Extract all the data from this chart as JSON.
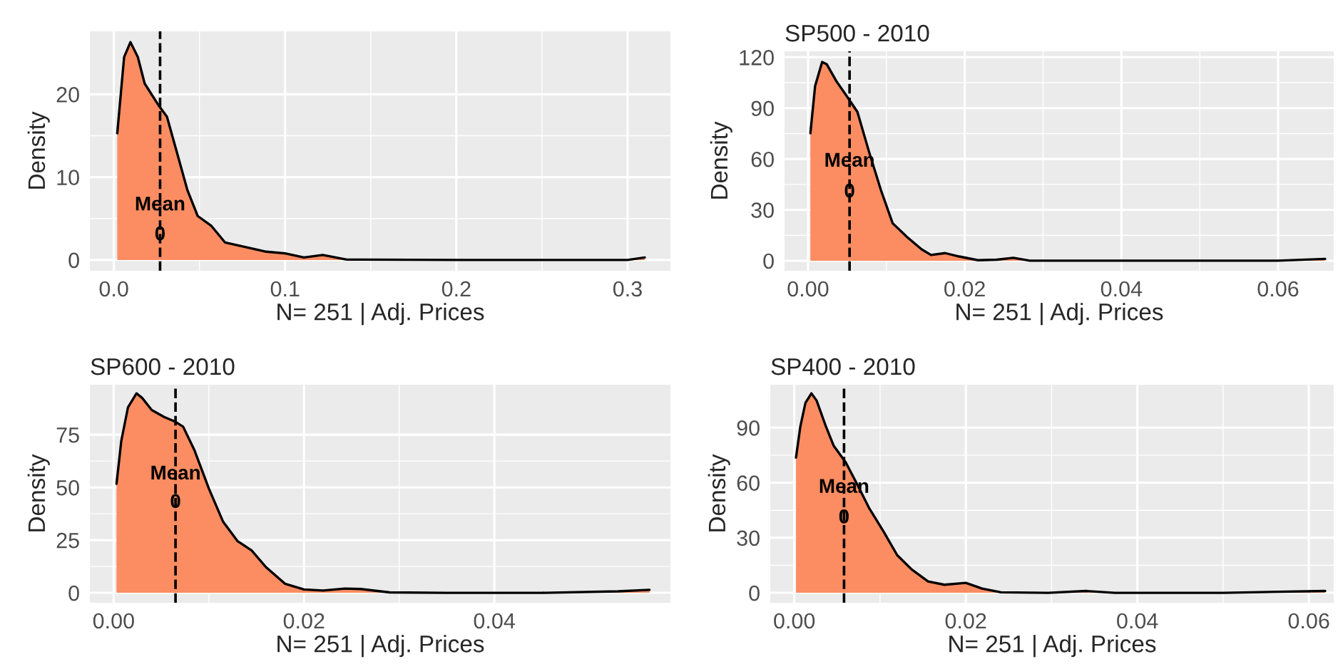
{
  "chart_data": [
    {
      "type": "area",
      "xlabel": "N= 251 | Adj. Prices",
      "ylabel": "Density",
      "xlim": [
        -0.014,
        0.325
      ],
      "ylim": [
        -1.3,
        27.6
      ],
      "xticks": [
        {
          "value": 0,
          "label": "0.0"
        },
        0.1,
        0.2,
        0.3
      ],
      "yticks": [
        0,
        10,
        20
      ],
      "grid": true,
      "x": [
        0.002,
        0.006,
        0.0097,
        0.014,
        0.018,
        0.026,
        0.031,
        0.036,
        0.043,
        0.049,
        0.057,
        0.065,
        0.078,
        0.089,
        0.1,
        0.111,
        0.122,
        0.136,
        0.2,
        0.3,
        0.31
      ],
      "series": [
        {
          "color": "#fc8d62",
          "values": [
            15.3,
            24.5,
            26.3,
            24.5,
            21.3,
            18.7,
            17.3,
            13.6,
            8.4,
            5.3,
            4.1,
            2.1,
            1.5,
            1.0,
            0.8,
            0.3,
            0.6,
            0.05,
            0,
            0,
            0.3
          ]
        }
      ],
      "ref_lines": [
        {
          "axis": "x",
          "value": 0.027,
          "line_style": "dashed",
          "color": "#000000"
        }
      ],
      "annotations": [
        {
          "text": "Mean",
          "x": 0.027,
          "y": 6.6
        },
        {
          "text": "0",
          "x": 0.027,
          "y": 3.0
        }
      ]
    },
    {
      "type": "area",
      "title": "SP500 - 2010",
      "xlabel": "N= 251 | Adj. Prices",
      "ylabel": "Density",
      "xlim": [
        -0.003,
        0.0671
      ],
      "ylim": [
        -5.9,
        123.5
      ],
      "xticks": [
        {
          "value": 0,
          "label": "0.00"
        },
        {
          "value": 0.02,
          "label": "0.02"
        },
        {
          "value": 0.04,
          "label": "0.04"
        },
        {
          "value": 0.06,
          "label": "0.06"
        }
      ],
      "yticks": [
        0,
        30,
        60,
        90,
        120
      ],
      "grid": true,
      "x": [
        0.0003,
        0.0009,
        0.0018,
        0.0024,
        0.0036,
        0.0051,
        0.0063,
        0.0078,
        0.0093,
        0.0108,
        0.0127,
        0.0145,
        0.0157,
        0.0175,
        0.0193,
        0.0217,
        0.0241,
        0.0262,
        0.0283,
        0.04,
        0.06,
        0.066
      ],
      "series": [
        {
          "color": "#fc8d62",
          "values": [
            75.2,
            103,
            117.2,
            115.8,
            106,
            96,
            87.8,
            64,
            41.7,
            22.1,
            13.7,
            6.7,
            3.4,
            4.5,
            2.5,
            0.3,
            0.6,
            1.7,
            0,
            0,
            0,
            1.1
          ]
        }
      ],
      "ref_lines": [
        {
          "axis": "x",
          "value": 0.0053,
          "line_style": "dashed",
          "color": "#000000"
        }
      ],
      "annotations": [
        {
          "text": "Mean",
          "x": 0.0053,
          "y": 58.5
        },
        {
          "text": "0",
          "x": 0.0053,
          "y": 40.3
        }
      ]
    },
    {
      "type": "area",
      "title": "SP600 - 2010",
      "xlabel": "N= 251 | Adj. Prices",
      "ylabel": "Density",
      "xlim": [
        -0.0025,
        0.0585
      ],
      "ylim": [
        -4.7,
        98.7
      ],
      "xticks": [
        {
          "value": 0,
          "label": "0.00"
        },
        {
          "value": 0.02,
          "label": "0.02"
        },
        {
          "value": 0.04,
          "label": "0.04"
        }
      ],
      "yticks": [
        0,
        25,
        50,
        75
      ],
      "grid": true,
      "x": [
        0.0003,
        0.0008,
        0.0015,
        0.0024,
        0.003,
        0.004,
        0.0053,
        0.0065,
        0.0073,
        0.0085,
        0.01,
        0.0115,
        0.013,
        0.0145,
        0.016,
        0.018,
        0.02,
        0.022,
        0.0243,
        0.026,
        0.029,
        0.035,
        0.045,
        0.053,
        0.0563
      ],
      "series": [
        {
          "color": "#fc8d62",
          "values": [
            51.7,
            72,
            87.9,
            94.6,
            92.4,
            86.7,
            83.4,
            81.1,
            78.8,
            67.5,
            49.5,
            33.7,
            24.6,
            20.1,
            12.2,
            4.3,
            1.6,
            1.1,
            2.0,
            1.8,
            0.2,
            0,
            0,
            0.7,
            1.4
          ]
        }
      ],
      "ref_lines": [
        {
          "axis": "x",
          "value": 0.0065,
          "line_style": "dashed",
          "color": "#000000"
        }
      ],
      "annotations": [
        {
          "text": "Mean",
          "x": 0.0065,
          "y": 56.2
        },
        {
          "text": "0",
          "x": 0.0065,
          "y": 42.7
        }
      ]
    },
    {
      "type": "area",
      "title": "SP400 - 2010",
      "xlabel": "N= 251 | Adj. Prices",
      "ylabel": "Density",
      "xlim": [
        -0.0028,
        0.0629
      ],
      "ylim": [
        -5.4,
        113.4
      ],
      "xticks": [
        {
          "value": 0,
          "label": "0.00"
        },
        {
          "value": 0.02,
          "label": "0.02"
        },
        {
          "value": 0.04,
          "label": "0.04"
        },
        {
          "value": 0.06,
          "label": "0.06"
        }
      ],
      "yticks": [
        0,
        30,
        60,
        90
      ],
      "grid": true,
      "x": [
        0.0002,
        0.0007,
        0.0013,
        0.002,
        0.0026,
        0.0037,
        0.0046,
        0.006,
        0.0073,
        0.0087,
        0.0104,
        0.012,
        0.0137,
        0.0156,
        0.0175,
        0.02,
        0.0219,
        0.0241,
        0.0296,
        0.034,
        0.0374,
        0.05,
        0.0619
      ],
      "series": [
        {
          "color": "#fc8d62",
          "values": [
            73.7,
            90.5,
            103.5,
            108.7,
            104.8,
            90.5,
            80.1,
            71.1,
            59.4,
            46.4,
            33.5,
            20.5,
            12.7,
            6.2,
            4.4,
            5.4,
            2.3,
            0.3,
            0,
            1.0,
            0,
            0,
            1.0
          ]
        }
      ],
      "ref_lines": [
        {
          "axis": "x",
          "value": 0.0058,
          "line_style": "dashed",
          "color": "#000000"
        }
      ],
      "annotations": [
        {
          "text": "Mean",
          "x": 0.0058,
          "y": 57.3
        },
        {
          "text": "0",
          "x": 0.0058,
          "y": 40.7
        }
      ]
    }
  ]
}
